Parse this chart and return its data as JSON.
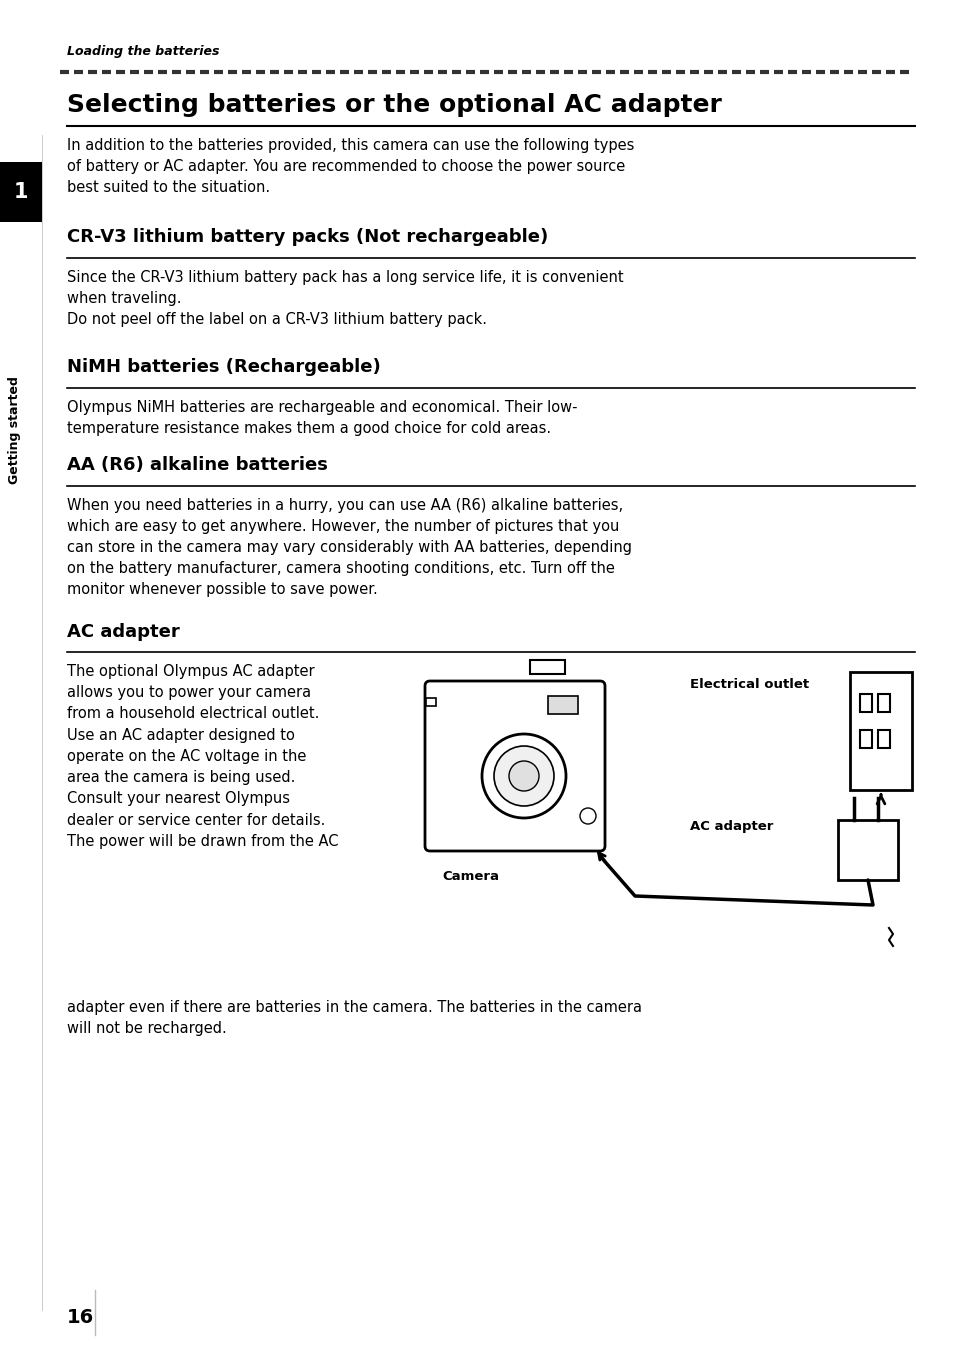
{
  "bg_color": "#ffffff",
  "page_number": "16",
  "header_italic": "Loading the batteries",
  "title": "Selecting batteries or the optional AC adapter",
  "intro_text": "In addition to the batteries provided, this camera can use the following types\nof battery or AC adapter. You are recommended to choose the power source\nbest suited to the situation.",
  "section1_title": "CR-V3 lithium battery packs (Not rechargeable)",
  "section1_text": "Since the CR-V3 lithium battery pack has a long service life, it is convenient\nwhen traveling.\nDo not peel off the label on a CR-V3 lithium battery pack.",
  "section2_title": "NiMH batteries (Rechargeable)",
  "section2_text": "Olympus NiMH batteries are rechargeable and economical. Their low-\ntemperature resistance makes them a good choice for cold areas.",
  "section3_title": "AA (R6) alkaline batteries",
  "section3_text": "When you need batteries in a hurry, you can use AA (R6) alkaline batteries,\nwhich are easy to get anywhere. However, the number of pictures that you\ncan store in the camera may vary considerably with AA batteries, depending\non the battery manufacturer, camera shooting conditions, etc. Turn off the\nmonitor whenever possible to save power.",
  "section4_title": "AC adapter",
  "section4_text_left": "The optional Olympus AC adapter\nallows you to power your camera\nfrom a household electrical outlet.\nUse an AC adapter designed to\noperate on the AC voltage in the\narea the camera is being used.\nConsult your nearest Olympus\ndealer or service center for details.\nThe power will be drawn from the AC",
  "section4_text_full": "adapter even if there are batteries in the camera. The batteries in the camera\nwill not be recharged.",
  "label_electrical_outlet": "Electrical outlet",
  "label_ac_adapter": "AC adapter",
  "label_camera": "Camera",
  "sidebar_text": "Getting started",
  "sidebar_number": "1",
  "text_color": "#000000",
  "title_color": "#000000",
  "rule_color": "#000000"
}
